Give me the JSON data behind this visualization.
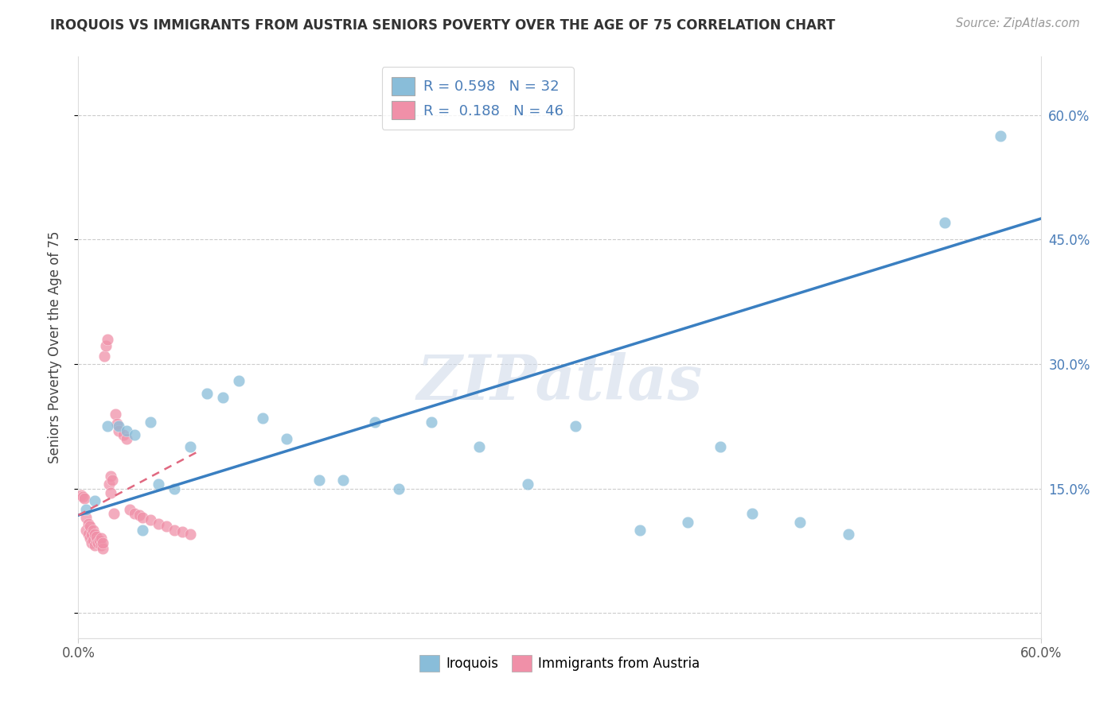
{
  "title": "IROQUOIS VS IMMIGRANTS FROM AUSTRIA SENIORS POVERTY OVER THE AGE OF 75 CORRELATION CHART",
  "source": "Source: ZipAtlas.com",
  "ylabel": "Seniors Poverty Over the Age of 75",
  "xlim": [
    0.0,
    0.6
  ],
  "ylim": [
    -0.03,
    0.67
  ],
  "yticks": [
    0.0,
    0.15,
    0.3,
    0.45,
    0.6
  ],
  "ytick_labels_right": [
    "",
    "15.0%",
    "30.0%",
    "45.0%",
    "60.0%"
  ],
  "iroquois_color": "#89bdd9",
  "austria_color": "#f090a8",
  "iroquois_line_color": "#3a7fc1",
  "austria_line_color": "#e06880",
  "watermark_text": "ZIPatlas",
  "legend_label_1": "R = 0.598   N = 32",
  "legend_label_2": "R =  0.188   N = 46",
  "iroquois_scatter_x": [
    0.005,
    0.01,
    0.018,
    0.025,
    0.03,
    0.035,
    0.04,
    0.045,
    0.05,
    0.06,
    0.07,
    0.08,
    0.09,
    0.1,
    0.115,
    0.13,
    0.15,
    0.165,
    0.185,
    0.2,
    0.22,
    0.25,
    0.28,
    0.31,
    0.35,
    0.38,
    0.4,
    0.42,
    0.45,
    0.48,
    0.54,
    0.575
  ],
  "iroquois_scatter_y": [
    0.125,
    0.135,
    0.225,
    0.225,
    0.22,
    0.215,
    0.1,
    0.23,
    0.155,
    0.15,
    0.2,
    0.265,
    0.26,
    0.28,
    0.235,
    0.21,
    0.16,
    0.16,
    0.23,
    0.15,
    0.23,
    0.2,
    0.155,
    0.225,
    0.1,
    0.11,
    0.2,
    0.12,
    0.11,
    0.095,
    0.47,
    0.575
  ],
  "austria_scatter_x": [
    0.002,
    0.003,
    0.004,
    0.005,
    0.005,
    0.006,
    0.006,
    0.007,
    0.007,
    0.008,
    0.008,
    0.009,
    0.009,
    0.01,
    0.01,
    0.011,
    0.011,
    0.012,
    0.013,
    0.014,
    0.014,
    0.015,
    0.015,
    0.016,
    0.017,
    0.018,
    0.019,
    0.02,
    0.02,
    0.021,
    0.022,
    0.023,
    0.024,
    0.025,
    0.028,
    0.03,
    0.032,
    0.035,
    0.038,
    0.04,
    0.045,
    0.05,
    0.055,
    0.06,
    0.065,
    0.07
  ],
  "austria_scatter_y": [
    0.142,
    0.14,
    0.138,
    0.1,
    0.115,
    0.095,
    0.108,
    0.09,
    0.105,
    0.085,
    0.095,
    0.088,
    0.1,
    0.082,
    0.095,
    0.088,
    0.092,
    0.085,
    0.088,
    0.082,
    0.09,
    0.078,
    0.085,
    0.31,
    0.322,
    0.33,
    0.155,
    0.145,
    0.165,
    0.16,
    0.12,
    0.24,
    0.228,
    0.22,
    0.215,
    0.21,
    0.125,
    0.12,
    0.118,
    0.115,
    0.112,
    0.108,
    0.105,
    0.1,
    0.098,
    0.095
  ],
  "iroquois_line_x": [
    0.0,
    0.6
  ],
  "iroquois_line_y": [
    0.118,
    0.475
  ],
  "austria_line_x": [
    0.0,
    0.075
  ],
  "austria_line_y": [
    0.118,
    0.195
  ]
}
